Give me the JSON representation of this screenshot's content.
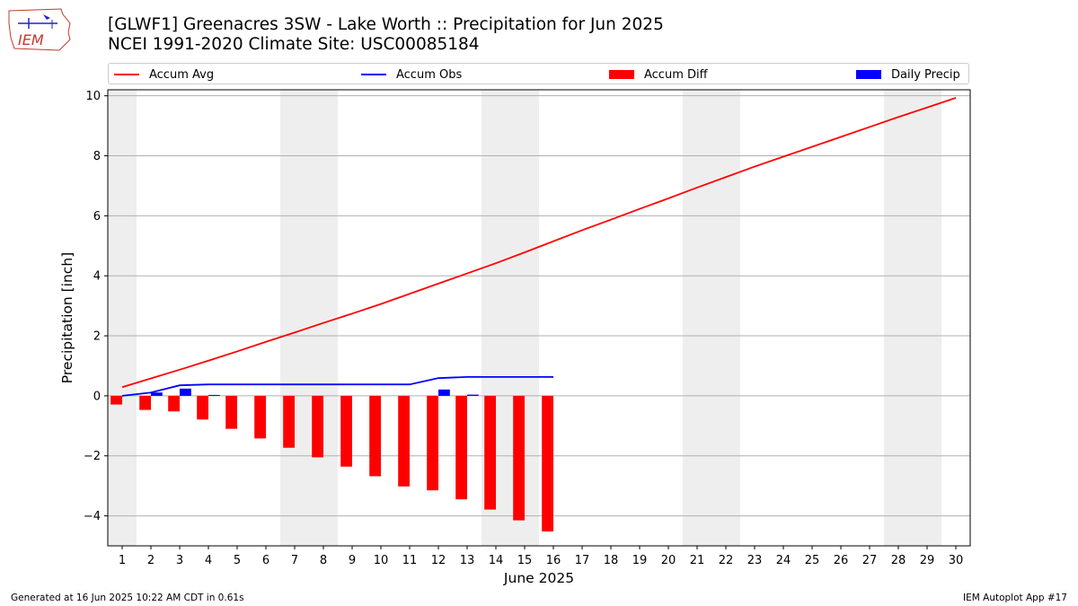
{
  "header": {
    "title_line1": "[GLWF1] Greenacres 3SW - Lake Worth :: Precipitation for Jun 2025",
    "title_line2": "NCEI 1991-2020 Climate Site: USC00085184",
    "logo_text": "IEM"
  },
  "footer": {
    "left": "Generated at 16 Jun 2025 10:22 AM CDT in 0.61s",
    "right": "IEM Autoplot App #17"
  },
  "colors": {
    "accum_avg": "#ff0000",
    "accum_obs": "#0000ff",
    "accum_diff": "#ff0000",
    "daily_precip": "#0000ff",
    "weekend_shade": "#eeeeee",
    "grid": "#b0b0b0"
  },
  "legend": [
    {
      "label": "Accum Avg",
      "kind": "line",
      "color": "#ff0000"
    },
    {
      "label": "Accum Obs",
      "kind": "line",
      "color": "#0000ff"
    },
    {
      "label": "Accum Diff",
      "kind": "box",
      "color": "#ff0000"
    },
    {
      "label": "Daily Precip",
      "kind": "box",
      "color": "#0000ff"
    }
  ],
  "chart_data": {
    "type": "bar",
    "title": "[GLWF1] Greenacres 3SW - Lake Worth :: Precipitation for Jun 2025",
    "subtitle": "NCEI 1991-2020 Climate Site: USC00085184",
    "xlabel": "June 2025",
    "ylabel": "Precipitation [inch]",
    "xlim": [
      0.5,
      30.5
    ],
    "ylim": [
      -5,
      10.2
    ],
    "yticks": [
      -4,
      -2,
      0,
      2,
      4,
      6,
      8,
      10
    ],
    "ytick_labels": [
      "−4",
      "−2",
      "0",
      "2",
      "4",
      "6",
      "8",
      "10"
    ],
    "x": [
      1,
      2,
      3,
      4,
      5,
      6,
      7,
      8,
      9,
      10,
      11,
      12,
      13,
      14,
      15,
      16,
      17,
      18,
      19,
      20,
      21,
      22,
      23,
      24,
      25,
      26,
      27,
      28,
      29,
      30
    ],
    "grid": "horizontal",
    "legend_position": "top",
    "weekend_shading": [
      [
        1,
        1
      ],
      [
        7,
        8
      ],
      [
        14,
        15
      ],
      [
        21,
        22
      ],
      [
        28,
        29
      ]
    ],
    "series": [
      {
        "name": "Accum Avg",
        "type": "line",
        "x": [
          1,
          2,
          3,
          4,
          5,
          6,
          7,
          8,
          9,
          10,
          11,
          12,
          13,
          14,
          15,
          16,
          17,
          18,
          19,
          20,
          21,
          22,
          23,
          24,
          25,
          26,
          27,
          28,
          29,
          30
        ],
        "values": [
          0.29,
          0.58,
          0.87,
          1.17,
          1.48,
          1.8,
          2.11,
          2.43,
          2.74,
          3.06,
          3.4,
          3.74,
          4.08,
          4.42,
          4.78,
          5.15,
          5.52,
          5.87,
          6.23,
          6.58,
          6.94,
          7.29,
          7.64,
          7.97,
          8.3,
          8.63,
          8.96,
          9.29,
          9.61,
          9.93
        ]
      },
      {
        "name": "Accum Obs",
        "type": "line",
        "x": [
          1,
          2,
          3,
          4,
          5,
          6,
          7,
          8,
          9,
          10,
          11,
          12,
          13,
          14,
          15,
          16
        ],
        "values": [
          0.0,
          0.11,
          0.35,
          0.38,
          0.38,
          0.38,
          0.38,
          0.38,
          0.38,
          0.38,
          0.38,
          0.59,
          0.63,
          0.63,
          0.63,
          0.63
        ]
      },
      {
        "name": "Accum Diff",
        "type": "bar",
        "x": [
          1,
          2,
          3,
          4,
          5,
          6,
          7,
          8,
          9,
          10,
          11,
          12,
          13,
          14,
          15,
          16
        ],
        "values": [
          -0.29,
          -0.47,
          -0.52,
          -0.79,
          -1.1,
          -1.42,
          -1.73,
          -2.05,
          -2.36,
          -2.68,
          -3.02,
          -3.15,
          -3.45,
          -3.79,
          -4.15,
          -4.52
        ]
      },
      {
        "name": "Daily Precip",
        "type": "bar",
        "x": [
          1,
          2,
          3,
          4,
          5,
          6,
          7,
          8,
          9,
          10,
          11,
          12,
          13,
          14,
          15,
          16
        ],
        "values": [
          0.0,
          0.11,
          0.24,
          0.03,
          0.0,
          0.0,
          0.0,
          0.0,
          0.0,
          0.0,
          0.0,
          0.21,
          0.04,
          0.0,
          0.0,
          0.0
        ]
      }
    ]
  }
}
